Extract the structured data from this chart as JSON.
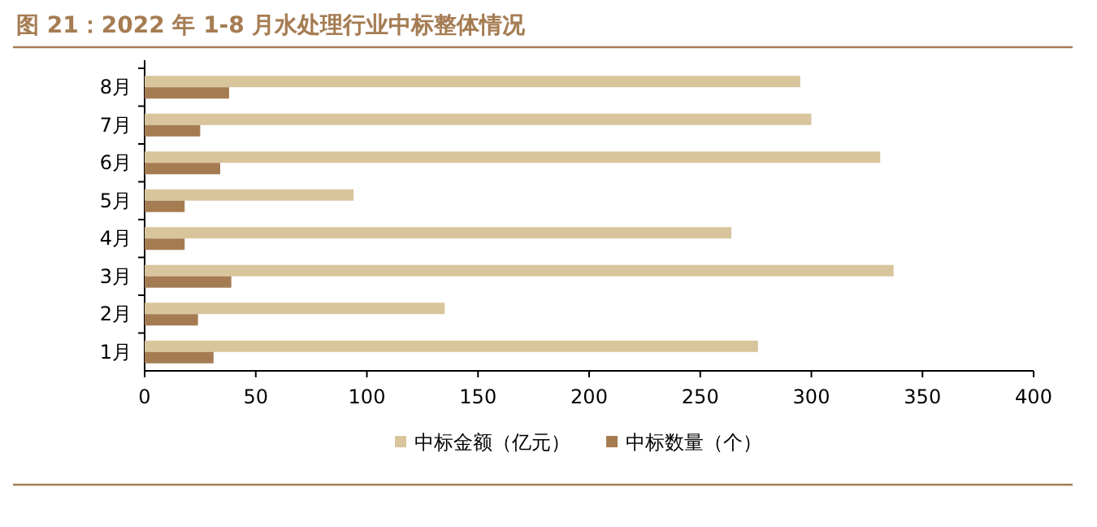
{
  "chart_data": {
    "type": "bar",
    "orientation": "horizontal",
    "title": "图 21：2022 年 1-8 月水处理行业中标整体情况",
    "categories": [
      "8月",
      "7月",
      "6月",
      "5月",
      "4月",
      "3月",
      "2月",
      "1月"
    ],
    "series": [
      {
        "name": "中标金额（亿元）",
        "color": "#d9c59c",
        "values": [
          295,
          300,
          331,
          94,
          264,
          337,
          135,
          276
        ]
      },
      {
        "name": "中标数量（个）",
        "color": "#a57c52",
        "values": [
          38,
          25,
          34,
          18,
          18,
          39,
          24,
          31
        ]
      }
    ],
    "xlim": [
      0,
      400
    ],
    "xticks": [
      0,
      50,
      100,
      150,
      200,
      250,
      300,
      350,
      400
    ],
    "legend": "bottom"
  }
}
